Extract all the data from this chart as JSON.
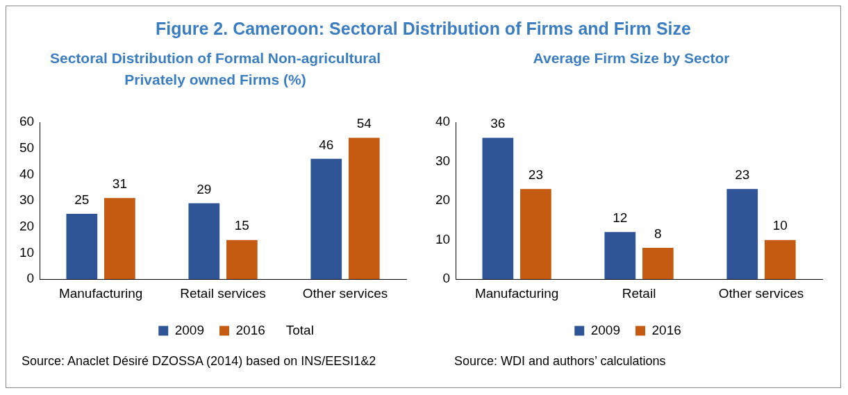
{
  "chart_data": [
    {
      "type": "bar",
      "title": "Figure 2.  Cameroon: Sectoral Distribution of Firms and Firm Size",
      "subtitle": "Sectoral Distribution of Formal Non-agricultural Privately owned Firms (%)",
      "categories": [
        "Manufacturing",
        "Retail services",
        "Other services"
      ],
      "series": [
        {
          "name": "2009",
          "color": "#2f5597",
          "values": [
            25,
            29,
            46
          ]
        },
        {
          "name": "2016",
          "color": "#c55a11",
          "values": [
            31,
            15,
            54
          ]
        }
      ],
      "ylim": [
        0,
        60
      ],
      "yticks": [
        0,
        10,
        20,
        30,
        40,
        50,
        60
      ],
      "grid": false,
      "legend": "bottom",
      "data_labels": true,
      "annotations": [
        "Total",
        "Source: Anaclet Désiré DZOSSA (2014) based on INS/EESI1&2"
      ]
    },
    {
      "type": "bar",
      "title": "Average Firm Size by Sector",
      "categories": [
        "Manufacturing",
        "Retail",
        "Other services"
      ],
      "series": [
        {
          "name": "2009",
          "color": "#2f5597",
          "values": [
            36,
            12,
            23
          ]
        },
        {
          "name": "2016",
          "color": "#c55a11",
          "values": [
            23,
            8,
            10
          ]
        }
      ],
      "ylim": [
        0,
        40
      ],
      "yticks": [
        0,
        10,
        20,
        30,
        40
      ],
      "grid": false,
      "legend": "bottom",
      "data_labels": true,
      "annotations": [
        "Source: WDI and authors’ calculations"
      ]
    }
  ]
}
